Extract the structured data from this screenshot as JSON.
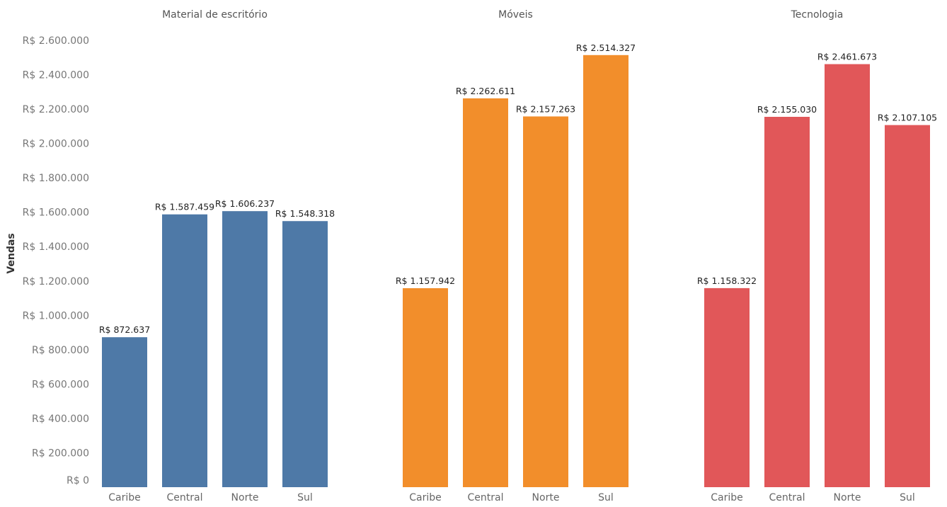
{
  "chart_data": {
    "type": "bar",
    "ylabel": "Vendas",
    "ylim": [
      0,
      2600000
    ],
    "yticks": [
      "R$ 0",
      "R$ 200.000",
      "R$ 400.000",
      "R$ 600.000",
      "R$ 800.000",
      "R$ 1.000.000",
      "R$ 1.200.000",
      "R$ 1.400.000",
      "R$ 1.600.000",
      "R$ 1.800.000",
      "R$ 2.000.000",
      "R$ 2.200.000",
      "R$ 2.400.000",
      "R$ 2.600.000"
    ],
    "ytick_values": [
      0,
      200000,
      400000,
      600000,
      800000,
      1000000,
      1200000,
      1400000,
      1600000,
      1800000,
      2000000,
      2200000,
      2400000,
      2600000
    ],
    "grid": false,
    "categories": [
      "Caribe",
      "Central",
      "Norte",
      "Sul"
    ],
    "panels": [
      {
        "title": "Material de escritório",
        "color": "#4e79a7",
        "values": [
          872637,
          1587459,
          1606237,
          1548318
        ],
        "labels": [
          "R$ 872.637",
          "R$ 1.587.459",
          "R$ 1.606.237",
          "R$ 1.548.318"
        ]
      },
      {
        "title": "Móveis",
        "color": "#f28e2b",
        "values": [
          1157942,
          2262611,
          2157263,
          2514327
        ],
        "labels": [
          "R$ 1.157.942",
          "R$ 2.262.611",
          "R$ 2.157.263",
          "R$ 2.514.327"
        ]
      },
      {
        "title": "Tecnologia",
        "color": "#e15759",
        "values": [
          1158322,
          2155030,
          2461673,
          2107105
        ],
        "labels": [
          "R$ 1.158.322",
          "R$ 2.155.030",
          "R$ 2.461.673",
          "R$ 2.107.105"
        ]
      }
    ]
  }
}
